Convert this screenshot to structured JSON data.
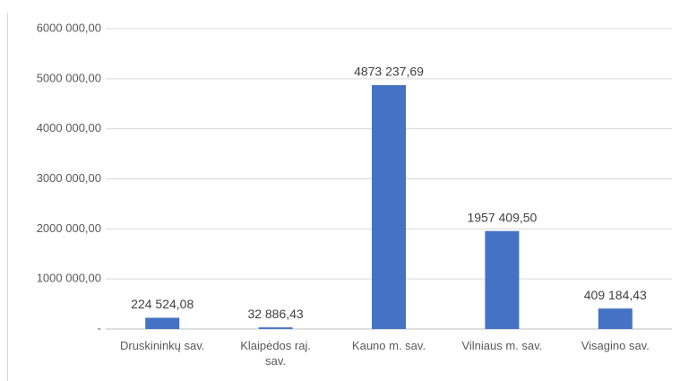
{
  "chart_data": {
    "type": "bar",
    "categories": [
      "Druskininkų sav.",
      "Klaipėdos raj. sav.",
      "Kauno m. sav.",
      "Vilniaus m. sav.",
      "Visagino sav."
    ],
    "values": [
      224524.08,
      32886.43,
      4873237.69,
      1957409.5,
      409184.43
    ],
    "value_labels": [
      "224 524,08",
      "32 886,43",
      "4873 237,69",
      "1957 409,50",
      "409 184,43"
    ],
    "color": "#4472c4",
    "ylim": [
      0,
      6000000
    ],
    "yticks": [
      {
        "value": 0,
        "label": "-"
      },
      {
        "value": 1000000,
        "label": "1000 000,00"
      },
      {
        "value": 2000000,
        "label": "2000 000,00"
      },
      {
        "value": 3000000,
        "label": "3000 000,00"
      },
      {
        "value": 4000000,
        "label": "4000 000,00"
      },
      {
        "value": 5000000,
        "label": "5000 000,00"
      },
      {
        "value": 6000000,
        "label": "6000 000,00"
      }
    ],
    "grid": true
  }
}
